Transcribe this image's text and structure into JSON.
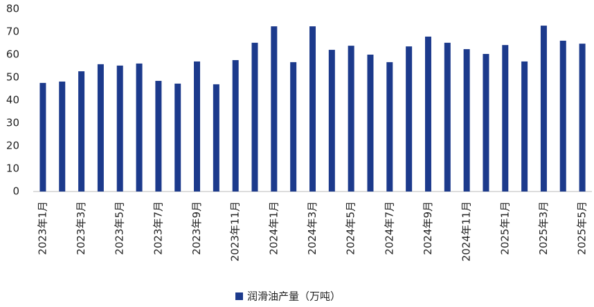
{
  "chart_data": {
    "type": "bar",
    "categories": [
      "2023年1月",
      null,
      "2023年3月",
      null,
      "2023年5月",
      null,
      "2023年7月",
      null,
      "2023年9月",
      null,
      "2023年11月",
      null,
      "2024年1月",
      null,
      "2024年3月",
      null,
      "2024年5月",
      null,
      "2024年7月",
      null,
      "2024年9月",
      null,
      "2024年11月",
      null,
      "2025年1月",
      null,
      "2025年3月",
      null,
      "2025年5月"
    ],
    "series": [
      {
        "name": "润滑油产量（万吨）",
        "color": "#1c3a8c",
        "values": [
          47.6,
          48.2,
          52.7,
          55.8,
          55.2,
          56.1,
          48.5,
          47.3,
          57.0,
          47.0,
          57.6,
          65.2,
          72.4,
          56.7,
          72.4,
          62.1,
          63.9,
          60.0,
          56.7,
          63.6,
          67.9,
          65.2,
          62.4,
          60.3,
          64.2,
          57.0,
          72.7,
          66.1,
          64.8
        ]
      }
    ],
    "ylim": [
      0,
      80
    ],
    "yticks": [
      0,
      10,
      20,
      30,
      40,
      50,
      60,
      70,
      80
    ]
  }
}
